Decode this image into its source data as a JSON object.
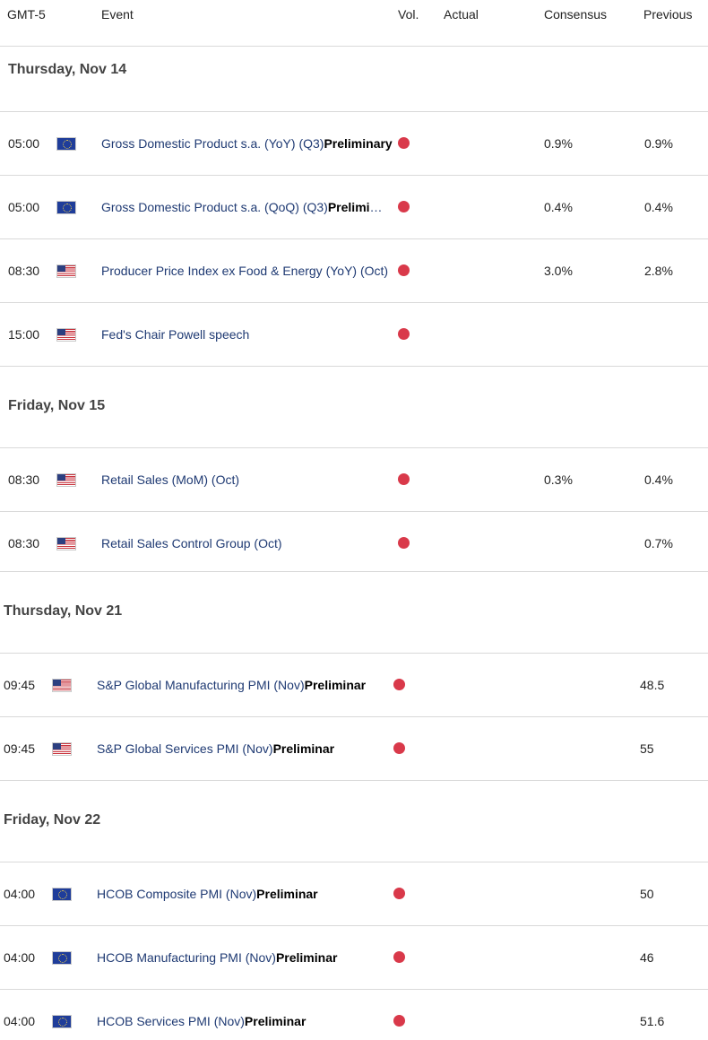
{
  "header": {
    "timezone": "GMT-5",
    "event": "Event",
    "vol": "Vol.",
    "actual": "Actual",
    "consensus": "Consensus",
    "previous": "Previous"
  },
  "sections": [
    {
      "day": "Thursday, Nov 14",
      "rows": [
        {
          "time": "05:00",
          "flag": "eu-flag-icon",
          "event": "Gross Domestic Product s.a. (YoY) (Q3)",
          "suffix": "Preliminary",
          "consensus": "0.9%",
          "previous": "0.9%"
        },
        {
          "time": "05:00",
          "flag": "eu-flag-icon",
          "event": "Gross Domestic Product s.a. (QoQ) (Q3)",
          "suffix": "Preliminary",
          "consensus": "0.4%",
          "previous": "0.4%"
        },
        {
          "time": "08:30",
          "flag": "us-flag-icon",
          "event": "Producer Price Index ex Food & Energy (YoY) (Oct)",
          "suffix": "",
          "consensus": "3.0%",
          "previous": "2.8%"
        },
        {
          "time": "15:00",
          "flag": "us-flag-icon",
          "event": "Fed's Chair Powell speech",
          "suffix": "",
          "consensus": "",
          "previous": ""
        }
      ]
    },
    {
      "day": "Friday, Nov 15",
      "rows": [
        {
          "time": "08:30",
          "flag": "us-flag-icon",
          "event": "Retail Sales (MoM) (Oct)",
          "suffix": "",
          "consensus": "0.3%",
          "previous": "0.4%"
        },
        {
          "time": "08:30",
          "flag": "us-flag-icon",
          "event": "Retail Sales Control Group (Oct)",
          "suffix": "",
          "consensus": "",
          "previous": "0.7%"
        }
      ]
    },
    {
      "day": "Thursday, Nov 21",
      "rows": [
        {
          "time": "09:45",
          "flag": "us-flag-icon",
          "event": "S&P Global Manufacturing PMI (Nov)",
          "suffix": "Preliminar",
          "consensus": "",
          "previous": "48.5"
        },
        {
          "time": "09:45",
          "flag": "us-flag-icon",
          "event": "S&P Global Services PMI (Nov)",
          "suffix": "Preliminar",
          "consensus": "",
          "previous": "55"
        }
      ]
    },
    {
      "day": "Friday, Nov 22",
      "rows": [
        {
          "time": "04:00",
          "flag": "eu-flag-icon",
          "event": "HCOB Composite PMI (Nov)",
          "suffix": "Preliminar",
          "consensus": "",
          "previous": "50"
        },
        {
          "time": "04:00",
          "flag": "eu-flag-icon",
          "event": "HCOB Manufacturing PMI (Nov)",
          "suffix": "Preliminar",
          "consensus": "",
          "previous": "46"
        },
        {
          "time": "04:00",
          "flag": "eu-flag-icon",
          "event": "HCOB Services PMI (Nov)",
          "suffix": "Preliminar",
          "consensus": "",
          "previous": "51.6"
        }
      ]
    }
  ],
  "colors": {
    "vol_dot": "#d9394a",
    "event_text": "#1f3a73"
  }
}
